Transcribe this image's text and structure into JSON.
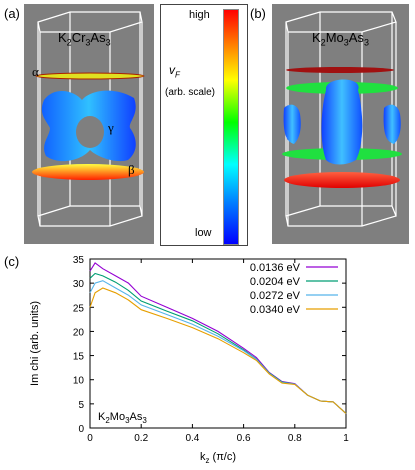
{
  "panels": {
    "a": {
      "letter": "(a)",
      "material": {
        "base": "K",
        "s1": "2",
        "mid": "Cr",
        "s2": "3",
        "end": "As",
        "s3": "3"
      },
      "labels": {
        "alpha": "α",
        "gamma": "γ",
        "beta": "β"
      }
    },
    "b": {
      "letter": "(b)",
      "material": {
        "base": "K",
        "s1": "2",
        "mid": "Mo",
        "s2": "3",
        "end": "As",
        "s3": "3"
      }
    },
    "c": {
      "letter": "(c)"
    }
  },
  "colorbar": {
    "high": "high",
    "low": "low",
    "quantity": "v",
    "quantity_sub": "F",
    "scale_note": "(arb. scale)"
  },
  "chart_data": {
    "type": "line",
    "xlabel_main": "k",
    "xlabel_sub": "z",
    "xlabel_unit": "(π/c)",
    "ylabel": "Im chi (arb. units)",
    "annotation": {
      "base": "K",
      "s1": "2",
      "mid": "Mo",
      "s2": "3",
      "end": "As",
      "s3": "3"
    },
    "xlim": [
      0,
      1
    ],
    "ylim": [
      0,
      35
    ],
    "xticks": [
      "0",
      "0.2",
      "0.4",
      "0.6",
      "0.8",
      "1"
    ],
    "yticks": [
      "0",
      "5",
      "10",
      "15",
      "20",
      "25",
      "30",
      "35"
    ],
    "legend_position": "top-right",
    "x": [
      0,
      0.02,
      0.05,
      0.1,
      0.15,
      0.2,
      0.3,
      0.4,
      0.5,
      0.6,
      0.65,
      0.7,
      0.75,
      0.8,
      0.85,
      0.9,
      0.95,
      1.0
    ],
    "series": [
      {
        "name": "0.0136 eV",
        "color": "#9400d3",
        "values": [
          32.5,
          34.2,
          33.0,
          31.5,
          30.0,
          27.3,
          25.0,
          22.7,
          20.0,
          16.5,
          14.6,
          11.5,
          9.6,
          9.2,
          6.8,
          5.6,
          5.4,
          3.0
        ]
      },
      {
        "name": "0.0204 eV",
        "color": "#009e73",
        "values": [
          31.0,
          32.0,
          31.5,
          30.2,
          28.5,
          26.3,
          24.2,
          22.2,
          19.5,
          16.2,
          14.3,
          11.4,
          9.5,
          9.1,
          6.8,
          5.6,
          5.4,
          3.0
        ]
      },
      {
        "name": "0.0272 eV",
        "color": "#56b4e9",
        "values": [
          28.0,
          30.0,
          30.5,
          29.0,
          27.5,
          25.5,
          23.5,
          21.5,
          19.0,
          16.0,
          14.2,
          11.3,
          9.4,
          9.1,
          6.8,
          5.6,
          5.4,
          3.0
        ]
      },
      {
        "name": "0.0340 eV",
        "color": "#e69f00",
        "values": [
          25.0,
          28.0,
          29.0,
          28.0,
          26.5,
          24.5,
          22.7,
          20.8,
          18.5,
          15.6,
          14.0,
          11.2,
          9.3,
          9.0,
          6.8,
          5.6,
          5.4,
          3.0
        ]
      }
    ]
  }
}
